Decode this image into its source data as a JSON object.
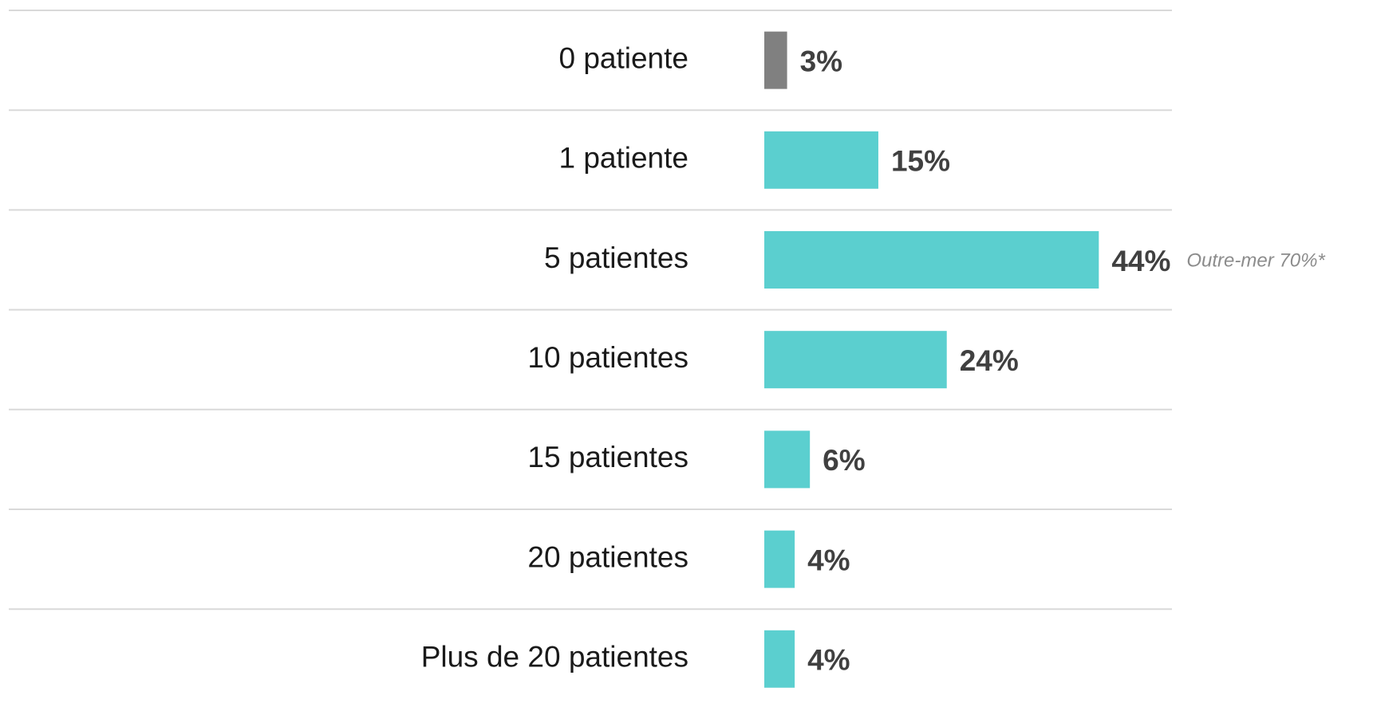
{
  "chart_data": {
    "type": "bar",
    "orientation": "horizontal",
    "categories": [
      "0 patiente",
      "1 patiente",
      "5 patientes",
      "10 patientes",
      "15 patientes",
      "20 patientes",
      "Plus de 20 patientes"
    ],
    "values": [
      3,
      15,
      44,
      24,
      6,
      4,
      4
    ],
    "value_labels": [
      "3%",
      "15%",
      "44%",
      "24%",
      "6%",
      "4%",
      "4%"
    ],
    "colors": [
      "#808080",
      "#5bcfcf",
      "#5bcfcf",
      "#5bcfcf",
      "#5bcfcf",
      "#5bcfcf",
      "#5bcfcf"
    ],
    "annotation": "Outre-mer 70%*"
  }
}
